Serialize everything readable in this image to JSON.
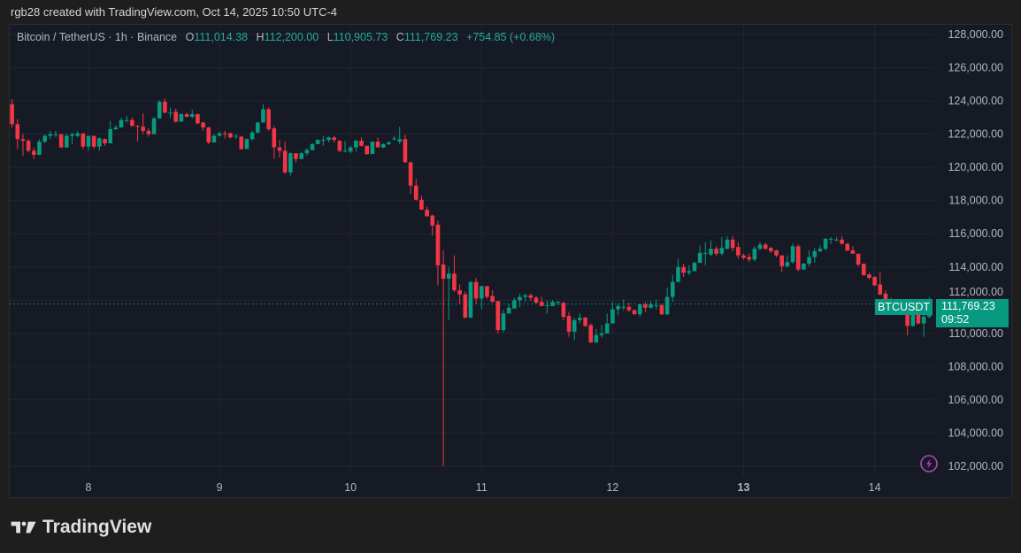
{
  "credit": "rgb28 created with TradingView.com, Oct 14, 2025 10:50 UTC-4",
  "legend": {
    "symbol": "Bitcoin / TetherUS · 1h · Binance",
    "o_label": "O",
    "open": "111,014.38",
    "h_label": "H",
    "high": "112,200.00",
    "l_label": "L",
    "low": "110,905.73",
    "c_label": "C",
    "close": "111,769.23",
    "change": "+754.85 (+0.68%)"
  },
  "price_tag": {
    "symbol": "BTCUSDT",
    "price": "111,769.23",
    "countdown": "09:52"
  },
  "brand": "TradingView",
  "colors": {
    "up": "#089981",
    "down": "#f23645",
    "background": "#161a25",
    "grid": "#232632"
  },
  "icons": {
    "alert": "lightning-icon",
    "logo": "tradingview-logo-icon"
  },
  "chart_data": {
    "type": "candlestick",
    "interval": "1h",
    "first_candle_time": "Oct 7 10:00",
    "ylim": [
      101000,
      128800
    ],
    "y_ticks": [
      "128,000.00",
      "126,000.00",
      "124,000.00",
      "122,000.00",
      "120,000.00",
      "118,000.00",
      "116,000.00",
      "114,000.00",
      "112,000.00",
      "110,000.00",
      "108,000.00",
      "106,000.00",
      "104,000.00",
      "102,000.00"
    ],
    "x_ticks": [
      "8",
      "9",
      "10",
      "11",
      "12",
      "13",
      "14"
    ],
    "grid": true,
    "last_price": 111769.23,
    "candles_ohlc": [
      [
        123800,
        124100,
        122400,
        122600
      ],
      [
        122600,
        122900,
        121100,
        121700
      ],
      [
        121700,
        122000,
        120700,
        121600
      ],
      [
        121600,
        121700,
        120900,
        121000
      ],
      [
        121000,
        121200,
        120500,
        120750
      ],
      [
        120750,
        121700,
        120750,
        121550
      ],
      [
        121550,
        122000,
        121450,
        121900
      ],
      [
        121900,
        122200,
        121700,
        122000
      ],
      [
        122000,
        122200,
        121800,
        122000
      ],
      [
        122000,
        122000,
        121200,
        121200
      ],
      [
        121200,
        122050,
        121200,
        121900
      ],
      [
        121900,
        122100,
        121400,
        122000
      ],
      [
        121900,
        122200,
        121800,
        122050
      ],
      [
        122050,
        122050,
        121100,
        121250
      ],
      [
        121250,
        121900,
        121000,
        121900
      ],
      [
        121900,
        121900,
        121100,
        121250
      ],
      [
        121250,
        121800,
        121000,
        121750
      ],
      [
        121700,
        121750,
        121300,
        121450
      ],
      [
        121450,
        122800,
        121450,
        122300
      ],
      [
        122300,
        122550,
        122250,
        122400
      ],
      [
        122400,
        123000,
        122400,
        122850
      ],
      [
        122850,
        123100,
        122700,
        122850
      ],
      [
        122850,
        123000,
        122450,
        122500
      ],
      [
        122500,
        122550,
        121550,
        122450
      ],
      [
        122450,
        123250,
        122000,
        122200
      ],
      [
        122200,
        122350,
        121850,
        122000
      ],
      [
        122000,
        123050,
        122000,
        122950
      ],
      [
        122950,
        124050,
        122950,
        123950
      ],
      [
        123950,
        124150,
        123250,
        123300
      ],
      [
        123300,
        123600,
        123000,
        123300
      ],
      [
        123350,
        123550,
        122700,
        122750
      ],
      [
        122750,
        123250,
        122750,
        123200
      ],
      [
        123200,
        123300,
        123000,
        123050
      ],
      [
        123050,
        123450,
        122950,
        123200
      ],
      [
        123200,
        123250,
        122600,
        122650
      ],
      [
        122700,
        122750,
        122200,
        122400
      ],
      [
        122400,
        122450,
        121400,
        121500
      ],
      [
        121500,
        122000,
        121500,
        121900
      ],
      [
        121900,
        122150,
        121850,
        122050
      ],
      [
        122050,
        122200,
        121750,
        122000
      ],
      [
        122050,
        122100,
        121750,
        121800
      ],
      [
        121850,
        122000,
        121700,
        121900
      ],
      [
        121850,
        121900,
        121050,
        121100
      ],
      [
        121100,
        121750,
        121100,
        121700
      ],
      [
        121700,
        122200,
        121600,
        122100
      ],
      [
        122100,
        122750,
        122050,
        122700
      ],
      [
        122700,
        123800,
        122700,
        123500
      ],
      [
        123500,
        123600,
        122200,
        122300
      ],
      [
        122350,
        122500,
        120500,
        121200
      ],
      [
        121200,
        121650,
        120600,
        121000
      ],
      [
        121000,
        121550,
        119600,
        119700
      ],
      [
        119700,
        120900,
        119500,
        120850
      ],
      [
        120850,
        120850,
        120300,
        120500
      ],
      [
        120500,
        120950,
        120500,
        120850
      ],
      [
        120850,
        121150,
        120700,
        121050
      ],
      [
        121050,
        121450,
        121000,
        121400
      ],
      [
        121400,
        121700,
        121400,
        121650
      ],
      [
        121650,
        121900,
        121300,
        121650
      ],
      [
        121650,
        121850,
        121500,
        121800
      ],
      [
        121800,
        121900,
        121500,
        121650
      ],
      [
        121600,
        121650,
        120900,
        121000
      ],
      [
        121000,
        121600,
        120900,
        121000
      ],
      [
        120950,
        121300,
        120850,
        121200
      ],
      [
        121200,
        121650,
        120950,
        121600
      ],
      [
        121600,
        121800,
        121250,
        121300
      ],
      [
        121300,
        121300,
        120750,
        120800
      ],
      [
        120800,
        121550,
        120800,
        121550
      ],
      [
        121550,
        121800,
        121200,
        121200
      ],
      [
        121200,
        121450,
        121150,
        121400
      ],
      [
        121400,
        121600,
        121350,
        121500
      ],
      [
        121750,
        121900,
        121600,
        121750
      ],
      [
        121550,
        122450,
        121400,
        121700
      ],
      [
        121700,
        121980,
        120300,
        120300
      ],
      [
        120300,
        120350,
        118400,
        118900
      ],
      [
        118900,
        119300,
        118000,
        118050
      ],
      [
        118050,
        118300,
        117450,
        117450
      ],
      [
        117450,
        117650,
        117050,
        117050
      ],
      [
        117100,
        117150,
        115900,
        116500
      ],
      [
        116550,
        116800,
        112900,
        114100
      ],
      [
        114150,
        115000,
        102000,
        113300
      ],
      [
        113300,
        114000,
        110800,
        113600
      ],
      [
        113600,
        114700,
        112500,
        112600
      ],
      [
        112600,
        112950,
        111800,
        112350
      ],
      [
        112350,
        112500,
        110900,
        110950
      ],
      [
        110950,
        113150,
        110950,
        113100
      ],
      [
        113100,
        113350,
        111800,
        112100
      ],
      [
        112100,
        112850,
        111450,
        112850
      ],
      [
        112850,
        112850,
        112100,
        112200
      ],
      [
        112250,
        112600,
        111900,
        111900
      ],
      [
        111950,
        111950,
        110000,
        110200
      ],
      [
        110200,
        111400,
        110050,
        111200
      ],
      [
        111200,
        111800,
        111200,
        111550
      ],
      [
        111500,
        112150,
        111500,
        112000
      ],
      [
        112000,
        112400,
        111600,
        112200
      ],
      [
        112200,
        112400,
        111900,
        112300
      ],
      [
        112300,
        112400,
        111950,
        112150
      ],
      [
        112150,
        112250,
        111800,
        111850
      ],
      [
        111900,
        112200,
        111650,
        111650
      ],
      [
        111700,
        112000,
        111200,
        111700
      ],
      [
        111650,
        112000,
        111650,
        111900
      ],
      [
        111900,
        111950,
        111700,
        111900
      ],
      [
        111850,
        111900,
        110800,
        111000
      ],
      [
        111050,
        111300,
        109800,
        110100
      ],
      [
        110100,
        110950,
        109600,
        110800
      ],
      [
        110800,
        111200,
        110600,
        110950
      ],
      [
        110950,
        111000,
        110400,
        110450
      ],
      [
        110500,
        110600,
        109450,
        109450
      ],
      [
        109450,
        110250,
        109450,
        109900
      ],
      [
        109900,
        110500,
        109750,
        110000
      ],
      [
        110000,
        111200,
        110000,
        110600
      ],
      [
        110600,
        111900,
        110600,
        111450
      ],
      [
        111450,
        111800,
        111100,
        111650
      ],
      [
        111600,
        112050,
        111400,
        111600
      ],
      [
        111600,
        111850,
        111300,
        111400
      ],
      [
        111400,
        111450,
        111150,
        111150
      ],
      [
        111150,
        111800,
        111000,
        111750
      ],
      [
        111750,
        111900,
        111300,
        111550
      ],
      [
        111550,
        111950,
        111500,
        111750
      ],
      [
        111700,
        112050,
        111450,
        111700
      ],
      [
        111700,
        111800,
        111100,
        111150
      ],
      [
        111150,
        112750,
        111100,
        112200
      ],
      [
        112200,
        113500,
        111900,
        113100
      ],
      [
        113100,
        114500,
        113100,
        114000
      ],
      [
        114000,
        114200,
        113400,
        113650
      ],
      [
        113650,
        114100,
        113500,
        113750
      ],
      [
        113750,
        114300,
        113750,
        114250
      ],
      [
        114250,
        115300,
        114250,
        114850
      ],
      [
        114850,
        115500,
        114100,
        114850
      ],
      [
        114750,
        115600,
        114650,
        115100
      ],
      [
        115100,
        115250,
        114650,
        114800
      ],
      [
        114800,
        115800,
        114700,
        115150
      ],
      [
        115100,
        115850,
        115050,
        115650
      ],
      [
        115650,
        115850,
        114950,
        115150
      ],
      [
        115200,
        115500,
        114500,
        114700
      ],
      [
        114700,
        114800,
        114450,
        114550
      ],
      [
        114600,
        114800,
        114300,
        114450
      ],
      [
        114450,
        115250,
        114350,
        115100
      ],
      [
        115100,
        115500,
        115000,
        115350
      ],
      [
        115350,
        115450,
        115050,
        115100
      ],
      [
        115150,
        115200,
        114850,
        114950
      ],
      [
        115000,
        115050,
        114600,
        114700
      ],
      [
        114700,
        114700,
        113700,
        114050
      ],
      [
        114050,
        114700,
        113950,
        114300
      ],
      [
        114300,
        115400,
        114200,
        115250
      ],
      [
        115250,
        115350,
        113750,
        113850
      ],
      [
        113850,
        114250,
        113850,
        114200
      ],
      [
        114200,
        115000,
        114050,
        114600
      ],
      [
        114600,
        115150,
        114250,
        114950
      ],
      [
        114950,
        115300,
        114900,
        115100
      ],
      [
        115100,
        115750,
        115000,
        115700
      ],
      [
        115700,
        115800,
        115400,
        115700
      ],
      [
        115650,
        115800,
        115550,
        115650
      ],
      [
        115650,
        115850,
        115350,
        115400
      ],
      [
        115400,
        115450,
        114950,
        115000
      ],
      [
        115000,
        115250,
        114800,
        114800
      ],
      [
        114800,
        114800,
        114050,
        114150
      ],
      [
        114200,
        114200,
        113500,
        113500
      ],
      [
        113550,
        113650,
        113250,
        113350
      ],
      [
        113400,
        113450,
        112850,
        112900
      ],
      [
        112950,
        113700,
        112300,
        112350
      ],
      [
        112400,
        112600,
        112000,
        112050
      ],
      [
        112050,
        112150,
        111600,
        111700
      ],
      [
        111700,
        111800,
        111400,
        111500
      ],
      [
        111500,
        111600,
        111100,
        111150
      ],
      [
        111200,
        111250,
        109900,
        110450
      ],
      [
        110450,
        111350,
        110400,
        111200
      ],
      [
        111200,
        111300,
        110550,
        110600
      ],
      [
        110600,
        111100,
        109800,
        111014.38
      ],
      [
        111014.38,
        112200,
        110905.73,
        111769.23
      ]
    ]
  }
}
